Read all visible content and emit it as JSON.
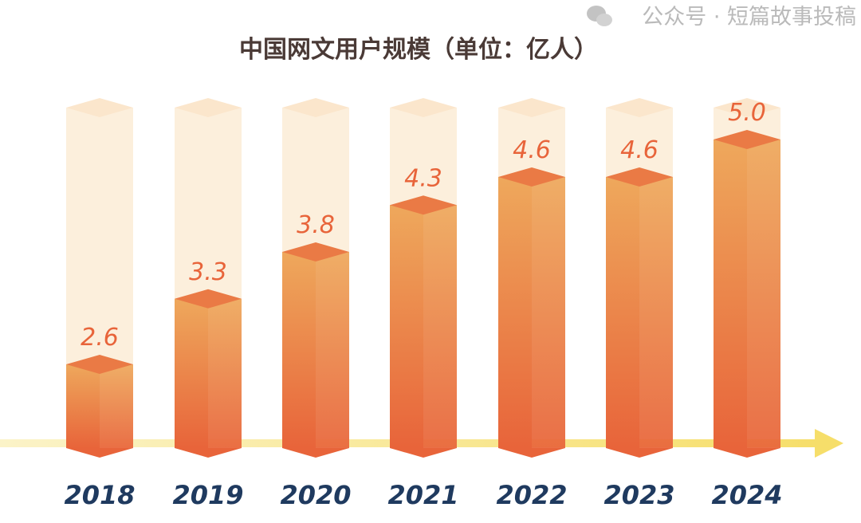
{
  "chart_data": {
    "type": "bar",
    "title": "中国网文用户规模（单位：亿人）",
    "categories": [
      "2018",
      "2019",
      "2020",
      "2021",
      "2022",
      "2023",
      "2024"
    ],
    "values": [
      2.6,
      3.3,
      3.8,
      4.3,
      4.6,
      4.6,
      5.0
    ],
    "value_labels": [
      "2.6",
      "3.3",
      "3.8",
      "4.3",
      "4.6",
      "4.6",
      "5.0"
    ],
    "xlabel": "",
    "ylabel": "",
    "grid": false,
    "legend": "none",
    "colors": {
      "bar_top": "#eea25a",
      "bar_bottom": "#e8643a",
      "background_column": "#fcefdc",
      "axis": "#f6e27a",
      "value_text": "#e8643a",
      "year_text": "#1f3a5f",
      "title": "#4a3a36"
    }
  },
  "watermark": "公众号 · 短篇故事投稿"
}
